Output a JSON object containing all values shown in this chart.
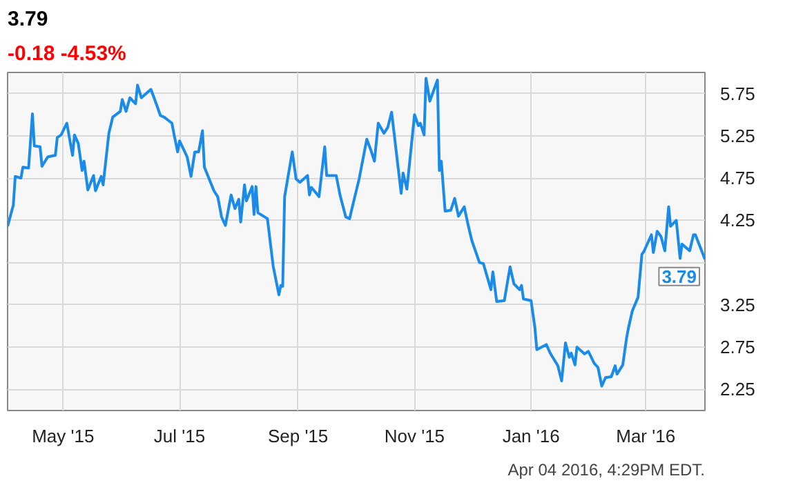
{
  "chart_data": {
    "type": "line",
    "title": "3.79",
    "subtitle": "-0.18  -4.53%",
    "annotations": [
      "Apr 04 2016, 4:29PM EDT."
    ],
    "x": [
      "2015-04-02",
      "2015-04-05",
      "2015-04-06",
      "2015-04-09",
      "2015-04-10",
      "2015-04-13",
      "2015-04-15",
      "2015-04-16",
      "2015-04-19",
      "2015-04-20",
      "2015-04-23",
      "2015-04-27",
      "2015-04-28",
      "2015-04-30",
      "2015-05-03",
      "2015-05-06",
      "2015-05-07",
      "2015-05-09",
      "2015-05-11",
      "2015-05-12",
      "2015-05-14",
      "2015-05-17",
      "2015-05-18",
      "2015-05-21",
      "2015-05-22",
      "2015-05-25",
      "2015-05-27",
      "2015-05-31",
      "2015-06-01",
      "2015-06-03",
      "2015-06-05",
      "2015-06-08",
      "2015-06-09",
      "2015-06-11",
      "2015-06-16",
      "2015-06-18",
      "2015-06-21",
      "2015-06-23",
      "2015-06-27",
      "2015-06-28",
      "2015-06-30",
      "2015-07-01",
      "2015-07-05",
      "2015-07-07",
      "2015-07-09",
      "2015-07-11",
      "2015-07-13",
      "2015-07-14",
      "2015-07-19",
      "2015-07-21",
      "2015-07-23",
      "2015-07-25",
      "2015-07-28",
      "2015-07-30",
      "2015-08-01",
      "2015-08-02",
      "2015-08-04",
      "2015-08-05",
      "2015-08-08",
      "2015-08-09",
      "2015-08-10",
      "2015-08-11",
      "2015-08-16",
      "2015-08-19",
      "2015-08-22",
      "2015-08-23",
      "2015-08-24",
      "2015-08-25",
      "2015-08-29",
      "2015-08-31",
      "2015-09-02",
      "2015-09-06",
      "2015-09-07",
      "2015-09-08",
      "2015-09-12",
      "2015-09-15",
      "2015-09-16",
      "2015-09-21",
      "2015-09-23",
      "2015-09-26",
      "2015-09-28",
      "2015-09-30",
      "2015-10-03",
      "2015-10-07",
      "2015-10-09",
      "2015-10-11",
      "2015-10-13",
      "2015-10-16",
      "2015-10-18",
      "2015-10-20",
      "2015-10-25",
      "2015-10-26",
      "2015-10-28",
      "2015-11-01",
      "2015-11-03",
      "2015-11-04",
      "2015-11-06",
      "2015-11-07",
      "2015-11-09",
      "2015-11-13",
      "2015-11-14",
      "2015-11-15",
      "2015-11-17",
      "2015-11-20",
      "2015-11-22",
      "2015-11-24",
      "2015-11-27",
      "2015-11-29",
      "2015-12-01",
      "2015-12-05",
      "2015-12-07",
      "2015-12-11",
      "2015-12-12",
      "2015-12-14",
      "2015-12-18",
      "2015-12-21",
      "2015-12-23",
      "2015-12-26",
      "2015-12-27",
      "2015-12-28",
      "2016-01-01",
      "2016-01-03",
      "2016-01-04",
      "2016-01-09",
      "2016-01-11",
      "2016-01-15",
      "2016-01-17",
      "2016-01-19",
      "2016-01-21",
      "2016-01-22",
      "2016-01-24",
      "2016-01-25",
      "2016-01-29",
      "2016-01-31",
      "2016-02-03",
      "2016-02-05",
      "2016-02-07",
      "2016-02-09",
      "2016-02-12",
      "2016-02-14",
      "2016-02-15",
      "2016-02-18",
      "2016-02-20",
      "2016-02-21",
      "2016-02-23",
      "2016-02-26",
      "2016-02-28",
      "2016-02-29",
      "2016-03-04",
      "2016-03-05",
      "2016-03-07",
      "2016-03-09",
      "2016-03-11",
      "2016-03-13",
      "2016-03-14",
      "2016-03-17",
      "2016-03-19",
      "2016-03-20",
      "2016-03-24",
      "2016-03-26",
      "2016-03-27",
      "2016-04-01"
    ],
    "series": [
      {
        "color": "#1a8be8",
        "values": [
          4.18,
          4.43,
          4.77,
          4.75,
          4.88,
          4.87,
          5.51,
          5.13,
          5.12,
          4.89,
          5.0,
          5.02,
          5.23,
          5.26,
          5.4,
          5.02,
          5.26,
          5.16,
          4.84,
          4.95,
          4.61,
          4.78,
          4.6,
          4.77,
          4.67,
          5.28,
          5.47,
          5.54,
          5.68,
          5.54,
          5.7,
          5.63,
          5.85,
          5.7,
          5.8,
          5.68,
          5.49,
          5.47,
          5.4,
          5.28,
          5.06,
          5.19,
          5.0,
          4.77,
          5.06,
          5.06,
          5.31,
          4.88,
          4.6,
          4.53,
          4.29,
          4.19,
          4.55,
          4.39,
          4.5,
          4.23,
          4.67,
          4.48,
          4.65,
          4.32,
          4.65,
          4.34,
          4.27,
          3.71,
          3.37,
          3.48,
          3.47,
          4.53,
          5.06,
          4.74,
          4.7,
          4.78,
          4.55,
          4.64,
          4.53,
          5.12,
          4.78,
          4.78,
          4.55,
          4.29,
          4.27,
          4.46,
          4.74,
          5.21,
          5.09,
          4.95,
          5.4,
          5.28,
          5.35,
          5.53,
          4.57,
          4.81,
          4.62,
          5.5,
          5.37,
          5.4,
          5.26,
          5.93,
          5.66,
          5.91,
          4.84,
          4.95,
          4.36,
          4.37,
          4.51,
          4.3,
          4.41,
          4.2,
          4.01,
          3.75,
          3.74,
          3.43,
          3.64,
          3.29,
          3.3,
          3.7,
          3.5,
          3.43,
          3.48,
          3.32,
          3.3,
          2.98,
          2.72,
          2.78,
          2.68,
          2.53,
          2.35,
          2.8,
          2.63,
          2.68,
          2.54,
          2.75,
          2.67,
          2.7,
          2.56,
          2.51,
          2.29,
          2.39,
          2.4,
          2.53,
          2.43,
          2.54,
          2.86,
          2.98,
          3.18,
          3.34,
          3.85,
          3.88,
          4.08,
          3.87,
          4.12,
          4.06,
          3.89,
          4.41,
          4.18,
          4.25,
          3.8,
          3.97,
          3.89,
          4.08,
          4.08,
          3.79
        ],
        "value_labels": [
          null,
          null,
          null,
          null,
          null,
          null,
          null,
          null,
          null,
          null,
          null,
          null,
          null,
          null,
          null,
          null,
          null,
          null,
          null,
          null,
          null,
          null,
          null,
          null,
          null,
          null,
          null,
          null,
          null,
          null,
          null,
          null,
          null,
          null,
          null,
          null,
          null,
          null,
          null,
          null,
          null,
          null,
          null,
          null,
          null,
          null,
          null,
          null,
          null,
          null,
          null,
          null,
          null,
          null,
          null,
          null,
          null,
          null,
          null,
          null,
          null,
          null,
          null,
          null,
          null,
          null,
          null,
          null,
          null,
          null,
          null,
          null,
          null,
          null,
          null,
          null,
          null,
          null,
          null,
          null,
          null,
          null,
          null,
          null,
          null,
          null,
          null,
          null,
          null,
          null,
          null,
          null,
          null,
          null,
          null,
          null,
          null,
          null,
          null,
          null,
          null,
          null,
          null,
          null,
          null,
          null,
          null,
          null,
          null,
          null,
          null,
          null,
          null,
          null,
          null,
          null,
          null,
          null,
          null,
          null,
          null,
          null,
          null,
          null,
          null,
          null,
          null,
          null,
          null,
          null,
          null,
          null,
          null,
          null,
          null,
          null,
          null,
          null,
          null,
          null,
          null,
          null,
          null,
          null,
          null,
          null,
          null,
          null,
          null,
          null,
          null,
          null,
          null,
          null,
          null,
          null,
          null,
          null,
          null,
          null,
          null,
          "3.79"
        ]
      }
    ],
    "xlim": [
      "2015-04-02",
      "2016-04-01"
    ],
    "xticks": [
      {
        "value": "2015-05-01",
        "label": "May '15"
      },
      {
        "value": "2015-07-01",
        "label": "Jul '15"
      },
      {
        "value": "2015-09-01",
        "label": "Sep '15"
      },
      {
        "value": "2015-11-01",
        "label": "Nov '15"
      },
      {
        "value": "2016-01-01",
        "label": "Jan '16"
      },
      {
        "value": "2016-03-01",
        "label": "Mar '16"
      }
    ],
    "ylim": [
      2.0,
      6.0
    ],
    "yticks": [
      2.25,
      2.75,
      3.25,
      {
        "value": 3.75,
        "label": null
      },
      4.25,
      4.75,
      5.25,
      5.75
    ],
    "grid": true,
    "marker": "none",
    "line_style": "solid"
  }
}
